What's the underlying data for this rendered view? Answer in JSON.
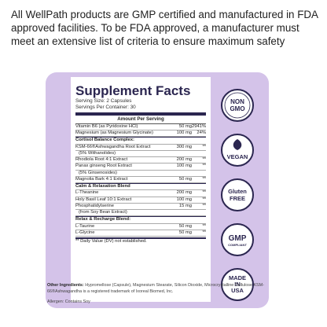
{
  "intro_text": "All WellPath products are GMP certified and manufactured in FDA approved facilities. To be FDA approved, a manufacturer must meet an extensive list of criteria to ensure maximum safety",
  "facts": {
    "title": "Supplement Facts",
    "serving_size": "Serving Size: 2 Capsules",
    "servings_per_container": "Servings Per Container: 30",
    "amount_header": "Amount Per Serving",
    "vitamins": [
      {
        "name": "Vitamin B6 (as Pyridoxine HCl)",
        "amount": "50 mg",
        "dv": "2941%"
      },
      {
        "name": "Magnesium (as Magnesium Glycinate)",
        "amount": "100 mg",
        "dv": "24%"
      }
    ],
    "sections": [
      {
        "title": "Cortisol Balance Complex:",
        "rows": [
          {
            "name": "KSM-66®Ashwagandha Root Extract",
            "amount": "300 mg",
            "dv": "**",
            "sub": "(5% Withanolides)"
          },
          {
            "name": "Rhodiola Root 4:1 Extract",
            "amount": "200 mg",
            "dv": "**"
          },
          {
            "name": "Panax ginseng Root Extract",
            "amount": "100 mg",
            "dv": "**",
            "sub": "(5% Ginsenosides)"
          },
          {
            "name": "Magnolia Bark 4:1 Extract",
            "amount": "50 mg",
            "dv": "**"
          }
        ]
      },
      {
        "title": "Calm & Relaxation Blend",
        "rows": [
          {
            "name": "L-Theanine",
            "amount": "200 mg",
            "dv": "**"
          },
          {
            "name": "Holy Basil Leaf 10:1 Extract",
            "amount": "100 mg",
            "dv": "**"
          },
          {
            "name": "Phosphatidylserine",
            "amount": "15 mg",
            "dv": "**",
            "sub": "(from Soy Bean Extract)"
          }
        ]
      },
      {
        "title": "Relax & Recharge Blend:",
        "rows": [
          {
            "name": "L-Taurine",
            "amount": "50 mg",
            "dv": "**"
          },
          {
            "name": "L-Glycine",
            "amount": "50 mg",
            "dv": "**"
          }
        ]
      }
    ],
    "footnote": "** Daily Value (DV) not established."
  },
  "other_ingredients": {
    "label": "Other Ingredients:",
    "text": "Hypromellose (Capsule), Magnesium Stearate, Silicon Dioxide, Microcrystalline Cellulose KSM-66®Ashwagandha is a registered trademark of Ixoreal Biomed, Inc."
  },
  "allergen": "Allergen: Contains Soy",
  "badges": [
    {
      "lines": [
        "NON",
        "GMO"
      ],
      "icon": "non-gmo-icon"
    },
    {
      "lines": [
        "VEGAN"
      ],
      "icon": "vegan-leaf-icon"
    },
    {
      "lines": [
        "Gluten",
        "FREE"
      ],
      "icon": "gluten-free-icon"
    },
    {
      "lines": [
        "GMP",
        "COMPLIANT"
      ],
      "icon": "gmp-icon"
    },
    {
      "lines": [
        "MADE",
        "IN",
        "USA"
      ],
      "icon": "made-in-usa-icon"
    }
  ],
  "colors": {
    "panel": "#d4c3e9",
    "ink": "#2b2650"
  }
}
